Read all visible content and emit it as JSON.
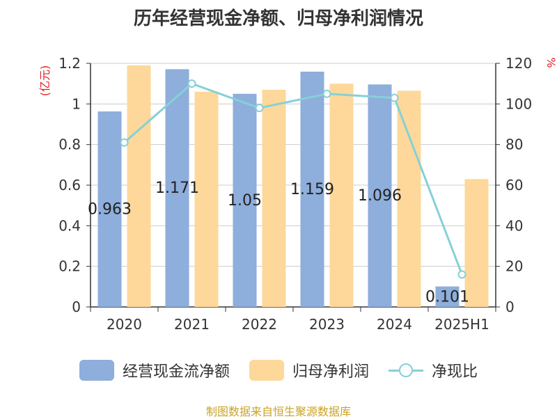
{
  "chart_data": {
    "type": "bar",
    "title": "历年经营现金净额、归母净利润情况",
    "categories": [
      "2020",
      "2021",
      "2022",
      "2023",
      "2024",
      "2025H1"
    ],
    "series": [
      {
        "name": "经营现金流净额",
        "axis": "left",
        "color": "#8eaedb",
        "values": [
          0.963,
          1.171,
          1.05,
          1.159,
          1.096,
          0.101
        ],
        "labels": [
          "0.963",
          "1.171",
          "1.05",
          "1.159",
          "1.096",
          "0.101"
        ]
      },
      {
        "name": "归母净利润",
        "axis": "left",
        "color": "#fdd89a",
        "values": [
          1.19,
          1.06,
          1.07,
          1.1,
          1.065,
          0.63
        ]
      },
      {
        "name": "净现比",
        "type": "line",
        "axis": "right",
        "color": "#86d0d6",
        "values": [
          81,
          110,
          98,
          105,
          103,
          16
        ]
      }
    ],
    "y_left": {
      "label": "(亿元)",
      "ylim": [
        0,
        1.2
      ],
      "ticks": [
        "0",
        "0.2",
        "0.4",
        "0.6",
        "0.8",
        "1",
        "1.2"
      ]
    },
    "y_right": {
      "label": "%",
      "ylim": [
        0,
        120
      ],
      "ticks": [
        "0",
        "20",
        "40",
        "60",
        "80",
        "100",
        "120"
      ]
    },
    "grid": true,
    "legend_position": "bottom"
  },
  "footer": "制图数据来自恒生聚源数据库"
}
